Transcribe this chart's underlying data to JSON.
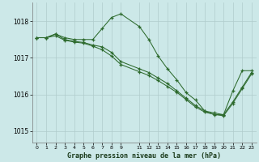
{
  "title": "Graphe pression niveau de la mer (hPa)",
  "background_color": "#cce8e8",
  "grid_color": "#b0cccc",
  "line_color": "#2d6a2d",
  "hours": [
    0,
    1,
    2,
    3,
    4,
    5,
    6,
    7,
    8,
    9,
    11,
    12,
    13,
    14,
    15,
    16,
    17,
    18,
    19,
    20,
    21,
    22,
    23
  ],
  "ylim": [
    1014.7,
    1018.5
  ],
  "yticks": [
    1015,
    1016,
    1017,
    1018
  ],
  "line1_y": [
    1017.55,
    1017.55,
    1017.65,
    1017.55,
    1017.5,
    1017.5,
    1017.5,
    1017.8,
    1018.1,
    1018.2,
    1017.85,
    1017.5,
    1017.05,
    1016.7,
    1016.4,
    1016.05,
    1015.85,
    1015.55,
    1015.45,
    1015.45,
    1016.1,
    1016.65,
    1016.65
  ],
  "line2_y": [
    1017.55,
    1017.55,
    1017.65,
    1017.5,
    1017.45,
    1017.42,
    1017.35,
    1017.3,
    1017.15,
    1016.9,
    1016.7,
    1016.6,
    1016.45,
    1016.3,
    1016.1,
    1015.9,
    1015.7,
    1015.55,
    1015.5,
    1015.45,
    1015.8,
    1016.2,
    1016.6
  ],
  "line3_y": [
    1017.55,
    1017.55,
    1017.6,
    1017.48,
    1017.43,
    1017.4,
    1017.32,
    1017.22,
    1017.05,
    1016.82,
    1016.62,
    1016.52,
    1016.38,
    1016.22,
    1016.06,
    1015.86,
    1015.66,
    1015.52,
    1015.46,
    1015.42,
    1015.76,
    1016.16,
    1016.56
  ]
}
